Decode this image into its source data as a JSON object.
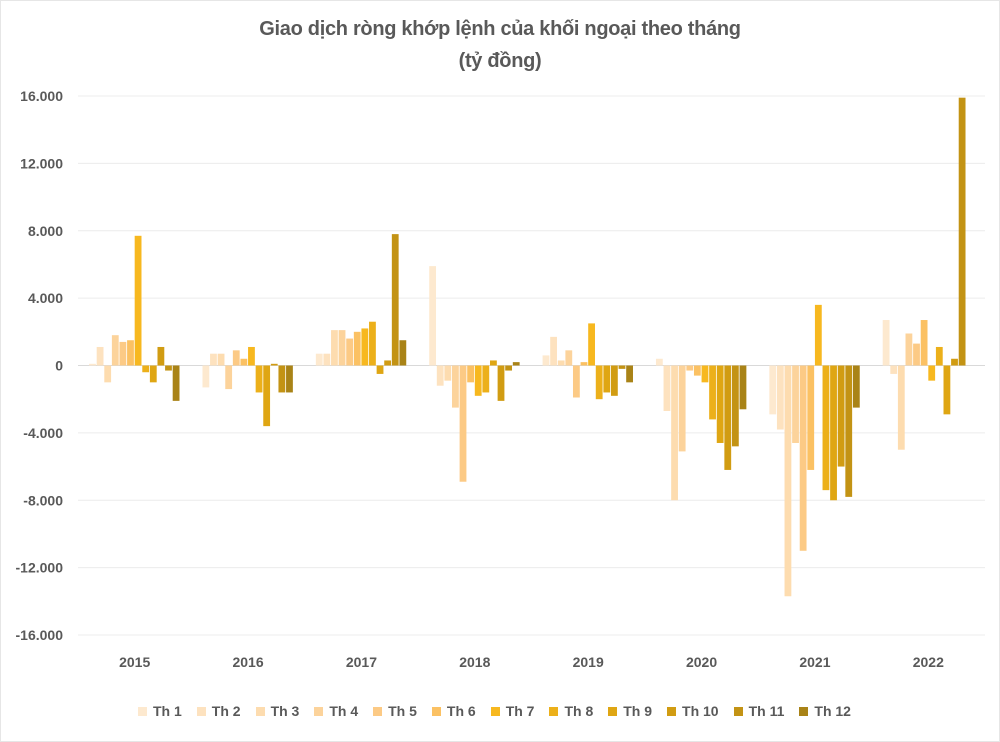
{
  "chart_data": {
    "type": "bar",
    "title": "Giao dịch ròng khớp lệnh của khối ngoại theo tháng",
    "subtitle": "(tỷ đồng)",
    "xlabel": "",
    "ylabel": "",
    "ylim": [
      -16000,
      16000
    ],
    "yticks": [
      16000,
      12000,
      8000,
      4000,
      0,
      -4000,
      -8000,
      -12000,
      -16000
    ],
    "ytick_labels": [
      "16.000",
      "12.000",
      "8.000",
      "4.000",
      "0",
      "-4.000",
      "-8.000",
      "-12.000",
      "-16.000"
    ],
    "grid": true,
    "legend_position": "bottom",
    "categories": [
      "2015",
      "2016",
      "2017",
      "2018",
      "2019",
      "2020",
      "2021",
      "2022"
    ],
    "series": [
      {
        "name": "Th 1",
        "color": "#fde9cf",
        "values": [
          100,
          -1300,
          700,
          5900,
          600,
          400,
          -2900,
          2700
        ]
      },
      {
        "name": "Th 2",
        "color": "#fde2bf",
        "values": [
          1100,
          700,
          700,
          -1200,
          1700,
          -2700,
          -3800,
          -500
        ]
      },
      {
        "name": "Th 3",
        "color": "#fddcaf",
        "values": [
          -1000,
          700,
          2100,
          -900,
          300,
          -8000,
          -13700,
          -5000
        ]
      },
      {
        "name": "Th 4",
        "color": "#fcd39b",
        "values": [
          1800,
          -1400,
          2100,
          -2500,
          900,
          -5100,
          -4600,
          1900
        ]
      },
      {
        "name": "Th 5",
        "color": "#fcca85",
        "values": [
          1400,
          900,
          1600,
          -6900,
          -1900,
          -300,
          -11000,
          1300
        ]
      },
      {
        "name": "Th 6",
        "color": "#fbc163",
        "values": [
          1500,
          400,
          2000,
          -1000,
          200,
          -600,
          -6200,
          2700
        ]
      },
      {
        "name": "Th 7",
        "color": "#f7b81f",
        "values": [
          7700,
          1100,
          2200,
          -1800,
          2500,
          -1000,
          3600,
          -900
        ]
      },
      {
        "name": "Th 8",
        "color": "#ecb01a",
        "values": [
          -400,
          -1600,
          2600,
          -1600,
          -2000,
          -3200,
          -7400,
          1100
        ]
      },
      {
        "name": "Th 9",
        "color": "#dfa613",
        "values": [
          -1000,
          -3600,
          -500,
          300,
          -1600,
          -4600,
          -8000,
          -2900
        ]
      },
      {
        "name": "Th 10",
        "color": "#d19c12",
        "values": [
          1100,
          100,
          300,
          -2100,
          -1800,
          -6200,
          -6000,
          400
        ]
      },
      {
        "name": "Th 11",
        "color": "#c39314",
        "values": [
          -300,
          -1600,
          7800,
          -300,
          -200,
          -4800,
          -7800,
          15900
        ]
      },
      {
        "name": "Th 12",
        "color": "#a98317",
        "values": [
          -2100,
          -1600,
          1500,
          200,
          -1000,
          -2600,
          -2500,
          null
        ]
      }
    ]
  }
}
